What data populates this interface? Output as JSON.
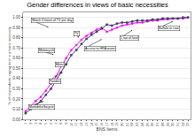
{
  "chart_data": {
    "type": "line",
    "title": "Gender differences in views of basic necessities",
    "x_label": "BNS Items",
    "y_label": "% of respondents saying item is a basic necessity",
    "x": [
      1,
      2,
      3,
      4,
      5,
      6,
      7,
      8,
      9,
      10,
      11,
      12,
      13,
      14,
      15,
      16,
      17,
      18,
      19,
      20,
      21,
      22,
      23,
      24,
      25,
      26,
      27,
      28,
      29,
      30,
      31,
      32,
      33
    ],
    "series": [
      {
        "color": "#ff00ff",
        "marker": "circle",
        "values": [
          0.08,
          0.13,
          0.18,
          0.22,
          0.28,
          0.35,
          0.42,
          0.52,
          0.6,
          0.68,
          0.73,
          0.78,
          0.82,
          0.85,
          0.88,
          0.9,
          0.86,
          0.88,
          0.9,
          0.92,
          0.93,
          0.94,
          0.95,
          0.95,
          0.96,
          0.97,
          0.97,
          0.98,
          0.98,
          0.99,
          0.99,
          0.99,
          1.0
        ]
      },
      {
        "color": "#404060",
        "marker": "square",
        "values": [
          0.06,
          0.1,
          0.14,
          0.18,
          0.24,
          0.3,
          0.38,
          0.46,
          0.54,
          0.63,
          0.68,
          0.74,
          0.79,
          0.83,
          0.86,
          0.89,
          0.93,
          0.92,
          0.94,
          0.95,
          0.95,
          0.96,
          0.97,
          0.97,
          0.97,
          0.98,
          0.98,
          0.99,
          0.99,
          0.99,
          0.99,
          1.0,
          1.0
        ]
      }
    ],
    "xlim": [
      0.5,
      33.5
    ],
    "ylim": [
      0.0,
      1.05
    ],
    "xticks": [
      1,
      2,
      3,
      4,
      5,
      6,
      7,
      8,
      9,
      10,
      11,
      12,
      13,
      14,
      15,
      16,
      17,
      18,
      19,
      20,
      21,
      22,
      23,
      24,
      25,
      26,
      27,
      28,
      29,
      30,
      31,
      32,
      33
    ],
    "yticks": [
      {
        "value": 0.0,
        "label": "0.00"
      },
      {
        "value": 0.1,
        "label": "0.10"
      },
      {
        "value": 0.2,
        "label": "0.20"
      },
      {
        "value": 0.3,
        "label": "0.30"
      },
      {
        "value": 0.4,
        "label": "0.40"
      },
      {
        "value": 0.5,
        "label": "0.50"
      },
      {
        "value": 0.6,
        "label": "0.60"
      },
      {
        "value": 0.7,
        "label": "0.70"
      },
      {
        "value": 0.8,
        "label": "0.80"
      },
      {
        "value": 0.9,
        "label": "0.90"
      },
      {
        "value": 1.0,
        "label": "1.00"
      }
    ],
    "grid": "y",
    "annotations": [
      {
        "text": "Watch 3 hours of TV per day",
        "text_x": 2.0,
        "text_y": 0.975,
        "x": 5.5,
        "y": 0.905
      },
      {
        "text": "TV",
        "text_x": 10.5,
        "text_y": 0.845,
        "x": 11.5,
        "y": 0.805
      },
      {
        "text": "Motorcycle",
        "text_x": 3.5,
        "text_y": 0.68,
        "x": 6.5,
        "y": 0.635
      },
      {
        "text": "Bikini",
        "text_x": 6.8,
        "text_y": 0.535,
        "x": 8.5,
        "y": 0.525
      },
      {
        "text": "Paedos",
        "text_x": 5.5,
        "text_y": 0.375,
        "x": 8.0,
        "y": 0.46
      },
      {
        "text": "Motorbike/bicycle",
        "text_x": 1.5,
        "text_y": 0.12,
        "x": 4.5,
        "y": 0.175
      },
      {
        "text": "Access to HRA water",
        "text_x": 12.5,
        "text_y": 0.695,
        "x": 16.0,
        "y": 0.785
      },
      {
        "text": "1 rao of land",
        "text_x": 19.5,
        "text_y": 0.795,
        "x": 22.0,
        "y": 0.875
      },
      {
        "text": "Buffalo or cow",
        "text_x": 27.0,
        "text_y": 0.895,
        "x": 30.0,
        "y": 0.96
      }
    ]
  }
}
